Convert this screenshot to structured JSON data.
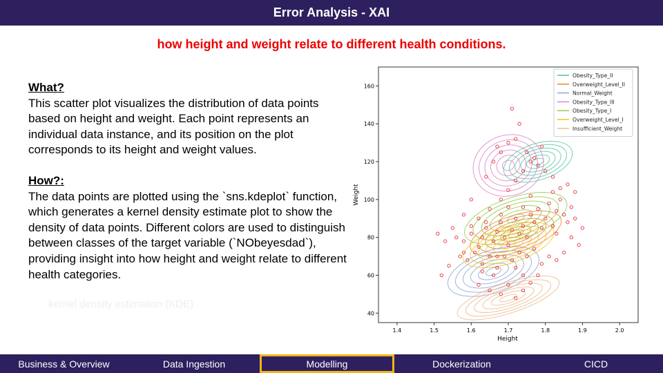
{
  "header": {
    "title": "Error Analysis - XAI"
  },
  "subtitle": "how height and weight relate to different health conditions.",
  "content": {
    "what_heading": "What?",
    "what_text": "This scatter plot visualizes the distribution of data points based on height and weight. Each point represents an individual data instance, and its position on the plot corresponds to its height and weight values.",
    "how_heading": "How?:",
    "how_text": "The data points are plotted using the `sns.kdeplot` function, which generates a kernel density estimate plot to show the density of data points. Different colors are used to distinguish between classes of the target variable (`NObeyesdad`), providing insight into how height and weight relate to different health categories.",
    "faint_text": "kernel density estimation (KDE)"
  },
  "chart_data": {
    "type": "scatter",
    "xlabel": "Height",
    "ylabel": "Weight",
    "xlim": [
      1.35,
      2.05
    ],
    "ylim": [
      35,
      170
    ],
    "xticks": [
      1.4,
      1.5,
      1.6,
      1.7,
      1.8,
      1.9,
      2.0
    ],
    "xtick_labels": [
      "1.4",
      "1.5",
      "1.6",
      "1.7",
      "1.8",
      "1.9",
      "2.0"
    ],
    "yticks": [
      40,
      60,
      80,
      100,
      120,
      140,
      160
    ],
    "ytick_labels": [
      "40",
      "60",
      "80",
      "100",
      "120",
      "140",
      "160"
    ],
    "legend_position": "top-right",
    "grid": false,
    "series": [
      {
        "name": "Obesity_Type_II",
        "color": "#4cc4a0",
        "center": [
          1.78,
          120
        ],
        "spread": [
          0.06,
          6
        ]
      },
      {
        "name": "Overweight_Level_II",
        "color": "#f07a28",
        "center": [
          1.72,
          82
        ],
        "spread": [
          0.08,
          6
        ]
      },
      {
        "name": "Normal_Weight",
        "color": "#8a9fd0",
        "center": [
          1.66,
          62
        ],
        "spread": [
          0.08,
          7
        ]
      },
      {
        "name": "Obesity_Type_III",
        "color": "#e07bc3",
        "center": [
          1.7,
          118
        ],
        "spread": [
          0.06,
          10
        ]
      },
      {
        "name": "Obesity_Type_I",
        "color": "#8cc63f",
        "center": [
          1.72,
          90
        ],
        "spread": [
          0.09,
          7
        ]
      },
      {
        "name": "Overweight_Level_I",
        "color": "#f2c30f",
        "center": [
          1.7,
          76
        ],
        "spread": [
          0.08,
          6
        ]
      },
      {
        "name": "Insufficient_Weight",
        "color": "#e8b88a",
        "center": [
          1.7,
          48
        ],
        "spread": [
          0.09,
          5
        ]
      }
    ],
    "scatter_points": [
      [
        1.56,
        80
      ],
      [
        1.58,
        78
      ],
      [
        1.6,
        82
      ],
      [
        1.62,
        75
      ],
      [
        1.63,
        80
      ],
      [
        1.64,
        85
      ],
      [
        1.66,
        78
      ],
      [
        1.67,
        83
      ],
      [
        1.68,
        88
      ],
      [
        1.69,
        80
      ],
      [
        1.7,
        76
      ],
      [
        1.71,
        84
      ],
      [
        1.72,
        90
      ],
      [
        1.73,
        82
      ],
      [
        1.74,
        86
      ],
      [
        1.75,
        80
      ],
      [
        1.76,
        92
      ],
      [
        1.77,
        88
      ],
      [
        1.78,
        95
      ],
      [
        1.79,
        85
      ],
      [
        1.8,
        90
      ],
      [
        1.81,
        98
      ],
      [
        1.82,
        86
      ],
      [
        1.83,
        94
      ],
      [
        1.84,
        100
      ],
      [
        1.85,
        92
      ],
      [
        1.86,
        88
      ],
      [
        1.87,
        96
      ],
      [
        1.88,
        104
      ],
      [
        1.9,
        85
      ],
      [
        1.52,
        60
      ],
      [
        1.54,
        65
      ],
      [
        1.57,
        70
      ],
      [
        1.59,
        68
      ],
      [
        1.61,
        72
      ],
      [
        1.63,
        66
      ],
      [
        1.65,
        70
      ],
      [
        1.67,
        64
      ],
      [
        1.69,
        70
      ],
      [
        1.71,
        68
      ],
      [
        1.73,
        72
      ],
      [
        1.75,
        70
      ],
      [
        1.77,
        74
      ],
      [
        1.79,
        66
      ],
      [
        1.81,
        70
      ],
      [
        1.83,
        68
      ],
      [
        1.85,
        72
      ],
      [
        1.62,
        90
      ],
      [
        1.65,
        95
      ],
      [
        1.68,
        100
      ],
      [
        1.7,
        105
      ],
      [
        1.72,
        110
      ],
      [
        1.74,
        115
      ],
      [
        1.76,
        120
      ],
      [
        1.78,
        118
      ],
      [
        1.8,
        115
      ],
      [
        1.82,
        112
      ],
      [
        1.75,
        125
      ],
      [
        1.77,
        122
      ],
      [
        1.79,
        128
      ],
      [
        1.66,
        120
      ],
      [
        1.68,
        125
      ],
      [
        1.7,
        130
      ],
      [
        1.64,
        112
      ],
      [
        1.6,
        100
      ],
      [
        1.58,
        92
      ],
      [
        1.55,
        85
      ],
      [
        1.53,
        78
      ],
      [
        1.51,
        82
      ],
      [
        1.62,
        55
      ],
      [
        1.65,
        52
      ],
      [
        1.68,
        50
      ],
      [
        1.7,
        55
      ],
      [
        1.72,
        48
      ],
      [
        1.74,
        52
      ],
      [
        1.76,
        56
      ],
      [
        1.78,
        60
      ],
      [
        1.74,
        60
      ],
      [
        1.72,
        64
      ],
      [
        1.66,
        60
      ],
      [
        1.86,
        108
      ],
      [
        1.84,
        106
      ],
      [
        1.82,
        104
      ],
      [
        1.88,
        90
      ],
      [
        1.76,
        102
      ],
      [
        1.74,
        96
      ],
      [
        1.7,
        96
      ],
      [
        1.68,
        92
      ],
      [
        1.64,
        88
      ],
      [
        1.6,
        86
      ],
      [
        1.73,
        140
      ],
      [
        1.72,
        132
      ],
      [
        1.71,
        148
      ],
      [
        1.67,
        128
      ],
      [
        1.83,
        82
      ],
      [
        1.87,
        80
      ],
      [
        1.89,
        76
      ],
      [
        1.67,
        70
      ],
      [
        1.63,
        62
      ],
      [
        1.58,
        72
      ]
    ]
  },
  "nav": {
    "items": [
      {
        "label": "Business & Overview"
      },
      {
        "label": "Data Ingestion"
      },
      {
        "label": "Modelling"
      },
      {
        "label": "Dockerization"
      },
      {
        "label": "CICD"
      }
    ]
  }
}
